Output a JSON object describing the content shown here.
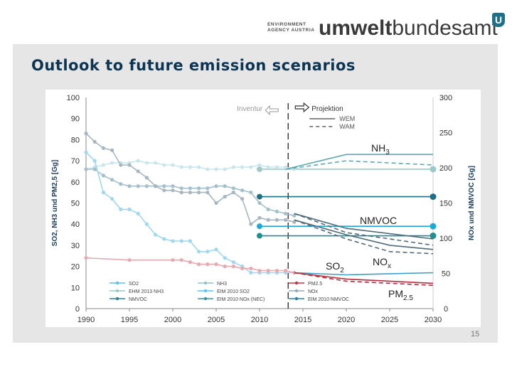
{
  "header": {
    "org_line1": "ENVIRONMENT",
    "org_line2": "AGENCY AUSTRIA",
    "wordmark_bold": "umwelt",
    "wordmark_rest": "bundesamt",
    "badge": "U"
  },
  "slide": {
    "title": "Outlook to future emission scenarios",
    "page_number": "15"
  },
  "chart_data": {
    "type": "line",
    "xlim": [
      1990,
      2030
    ],
    "x_ticks": [
      "1990",
      "1995",
      "2000",
      "2005",
      "2010",
      "2015",
      "2020",
      "2025",
      "2030"
    ],
    "y_left": {
      "label": "SO2, NH3 und PM2,5 [Gg]",
      "lim": [
        0,
        100
      ],
      "ticks": [
        "0",
        "10",
        "20",
        "30",
        "40",
        "50",
        "60",
        "70",
        "80",
        "90",
        "100"
      ]
    },
    "y_right": {
      "label": "NOx und NMVOC [Gg]",
      "lim": [
        0,
        300
      ],
      "ticks": [
        "0",
        "50",
        "100",
        "150",
        "200",
        "250",
        "300"
      ]
    },
    "inventory_label": "Inventur",
    "projection_label": "Projektion",
    "wem_label": "WEM",
    "wam_label": "WAM",
    "annotations": [
      {
        "key": "nh3",
        "text": "NH",
        "sub": "3"
      },
      {
        "key": "nmvoc",
        "text": "NMVOC",
        "sub": ""
      },
      {
        "key": "so2",
        "text": "SO",
        "sub": "2"
      },
      {
        "key": "nox",
        "text": "NO",
        "sub": "x"
      },
      {
        "key": "pm",
        "text": "PM",
        "sub": "2.5"
      }
    ],
    "legend": [
      {
        "label": "SO2",
        "color": "#5fc2ea"
      },
      {
        "label": "EHM 2013 NH3",
        "color": "#9cc9c9"
      },
      {
        "label": "NMVOC",
        "color": "#2a7f9a"
      },
      {
        "label": "NH3",
        "color": "#8dc7c9"
      },
      {
        "label": "EIM 2010 SO2",
        "color": "#5fc2ea"
      },
      {
        "label": "EIM 2010 NOx (NEC)",
        "color": "#3a8fa0"
      },
      {
        "label": "PM2.5",
        "color": "#c0394a"
      },
      {
        "label": "NOx",
        "color": "#9aa9b5"
      },
      {
        "label": "EIM 2010 NMVOC",
        "color": "#2a7f9a"
      }
    ],
    "series": [
      {
        "key": "nh3_hist",
        "axis": "left",
        "color": "#c9e6ec",
        "x": [
          1990,
          1991,
          1992,
          1993,
          1994,
          1995,
          1996,
          1997,
          1998,
          1999,
          2000,
          2001,
          2002,
          2003,
          2004,
          2005,
          2006,
          2007,
          2008,
          2009,
          2010,
          2011,
          2012,
          2013,
          2014
        ],
        "y": [
          66,
          67,
          68,
          69,
          69,
          69,
          70,
          69,
          69,
          68,
          68,
          67,
          67,
          67,
          66,
          66,
          66,
          67,
          67,
          67,
          68,
          67,
          67,
          67,
          66
        ]
      },
      {
        "key": "nh3_wem",
        "axis": "left",
        "color": "#5da9b0",
        "x": [
          2013,
          2020,
          2030
        ],
        "y": [
          66,
          73,
          73
        ]
      },
      {
        "key": "nh3_wam",
        "axis": "left",
        "color": "#5da9b0",
        "dash": true,
        "x": [
          2013,
          2020,
          2030
        ],
        "y": [
          66,
          70,
          68
        ]
      },
      {
        "key": "nmvoc_hist",
        "axis": "left",
        "color": "#a4bfcc",
        "x": [
          1990,
          1991,
          1992,
          1993,
          1994,
          1995,
          1996,
          1997,
          1998,
          1999,
          2000,
          2001,
          2002,
          2003,
          2004,
          2005,
          2006,
          2007,
          2008,
          2009,
          2010,
          2011,
          2012,
          2013,
          2014
        ],
        "y": [
          66,
          66,
          63,
          61,
          59,
          58,
          58,
          58,
          58,
          58,
          58,
          57,
          57,
          57,
          57,
          58,
          58,
          57,
          56,
          55,
          50,
          47,
          46,
          45,
          44
        ]
      },
      {
        "key": "nox_hist",
        "axis": "left",
        "color": "#a8b6c0",
        "x": [
          1990,
          1991,
          1992,
          1993,
          1994,
          1995,
          1996,
          1997,
          1998,
          1999,
          2000,
          2001,
          2002,
          2003,
          2004,
          2005,
          2006,
          2007,
          2008,
          2009,
          2010,
          2011,
          2012,
          2013,
          2014
        ],
        "y": [
          83,
          79,
          76,
          75,
          68,
          68,
          65,
          62,
          58,
          56,
          56,
          55,
          55,
          55,
          55,
          50,
          53,
          55,
          52,
          40,
          43,
          42,
          42,
          42,
          41
        ]
      },
      {
        "key": "so2_hist",
        "axis": "left",
        "color": "#9fd8ee",
        "x": [
          1990,
          1991,
          1992,
          1993,
          1994,
          1995,
          1996,
          1997,
          1998,
          1999,
          2000,
          2001,
          2002,
          2003,
          2004,
          2005,
          2006,
          2007,
          2008,
          2009,
          2010,
          2011,
          2012,
          2013,
          2014
        ],
        "y": [
          74,
          70,
          55,
          52,
          47,
          47,
          45,
          40,
          35,
          33,
          32,
          32,
          32,
          27,
          27,
          28,
          24,
          22,
          20,
          17,
          17,
          17,
          17,
          17,
          17
        ]
      },
      {
        "key": "pm_hist",
        "axis": "left",
        "color": "#e8a8b0",
        "x": [
          1990,
          1995,
          2000,
          2001,
          2002,
          2003,
          2004,
          2005,
          2006,
          2007,
          2008,
          2009,
          2010,
          2011,
          2012,
          2013,
          2014
        ],
        "y": [
          24,
          23,
          23,
          23,
          22,
          21,
          21,
          21,
          20,
          20,
          19,
          19,
          18,
          18,
          18,
          18,
          17
        ]
      },
      {
        "key": "nmvoc_wem",
        "axis": "left",
        "color": "#4f6a78",
        "x": [
          2014,
          2020,
          2030
        ],
        "y": [
          45,
          38,
          33
        ]
      },
      {
        "key": "nmvoc_wam",
        "axis": "left",
        "color": "#4f6a78",
        "dash": true,
        "x": [
          2014,
          2020,
          2030
        ],
        "y": [
          45,
          36,
          30
        ]
      },
      {
        "key": "nox_wem",
        "axis": "left",
        "color": "#4f6a78",
        "x": [
          2014,
          2020,
          2025,
          2030
        ],
        "y": [
          42,
          35,
          30,
          28
        ]
      },
      {
        "key": "nox_wam",
        "axis": "left",
        "color": "#4f6a78",
        "dash": true,
        "x": [
          2014,
          2020,
          2025,
          2030
        ],
        "y": [
          42,
          33,
          27,
          26
        ]
      },
      {
        "key": "so2_wem",
        "axis": "left",
        "color": "#3a9fc8",
        "x": [
          2014,
          2020,
          2030
        ],
        "y": [
          17,
          16,
          17
        ]
      },
      {
        "key": "pm_wem",
        "axis": "left",
        "color": "#b22e3e",
        "x": [
          2014,
          2020,
          2030
        ],
        "y": [
          17,
          14,
          12
        ]
      },
      {
        "key": "pm_wam",
        "axis": "left",
        "color": "#b22e3e",
        "dash": true,
        "x": [
          2014,
          2020,
          2030
        ],
        "y": [
          17,
          13,
          11
        ]
      }
    ],
    "targets": [
      {
        "key": "nh3_target",
        "color": "#9cc9c9",
        "x0": 2010,
        "x1": 2030,
        "y": 66
      },
      {
        "key": "nox_nec_target",
        "color": "#1f6f86",
        "x0": 2010,
        "x1": 2030,
        "y": 53
      },
      {
        "key": "so2_target",
        "color": "#1fa9d8",
        "x0": 2010,
        "x1": 2030,
        "y": 39
      },
      {
        "key": "nmvoc_target",
        "color": "#1f8f8f",
        "x0": 2010,
        "x1": 2030,
        "y": 34.5
      }
    ]
  }
}
